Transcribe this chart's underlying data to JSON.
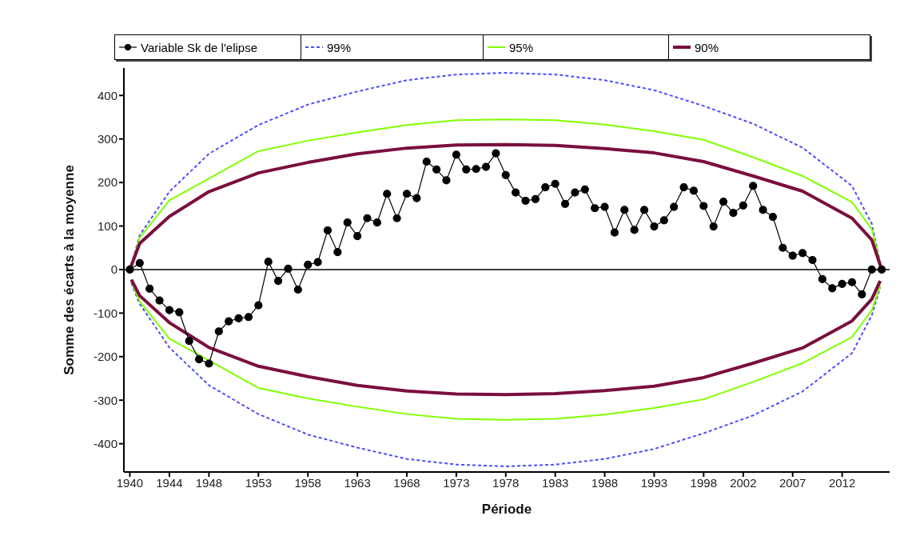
{
  "chart_data": {
    "type": "line",
    "xlabel": "Période",
    "ylabel": "Somme des écarts à la moyenne",
    "x": [
      1940,
      1941,
      1942,
      1943,
      1944,
      1945,
      1946,
      1947,
      1948,
      1949,
      1950,
      1951,
      1952,
      1953,
      1954,
      1955,
      1956,
      1957,
      1958,
      1959,
      1960,
      1961,
      1962,
      1963,
      1964,
      1965,
      1966,
      1967,
      1968,
      1969,
      1970,
      1971,
      1972,
      1973,
      1974,
      1975,
      1976,
      1977,
      1978,
      1979,
      1980,
      1981,
      1982,
      1983,
      1984,
      1985,
      1986,
      1987,
      1988,
      1989,
      1990,
      1991,
      1992,
      1993,
      1994,
      1995,
      1996,
      1997,
      1998,
      1999,
      2000,
      2001,
      2002,
      2003,
      2004,
      2005,
      2006,
      2007,
      2008,
      2009,
      2010,
      2011,
      2012,
      2013,
      2014,
      2015,
      2016
    ],
    "series": [
      {
        "name": "Variable Sk de l'elipse",
        "color": "#000000",
        "marker": "circle",
        "line_style": "solid",
        "values": [
          0,
          15,
          -44,
          -71,
          -93,
          -98,
          -164,
          -206,
          -216,
          -142,
          -119,
          -112,
          -109,
          -82,
          18,
          -26,
          2,
          -46,
          11,
          17,
          90,
          40,
          108,
          77,
          118,
          108,
          174,
          118,
          174,
          164,
          248,
          230,
          205,
          264,
          230,
          231,
          236,
          267,
          217,
          177,
          158,
          162,
          189,
          197,
          151,
          177,
          184,
          141,
          144,
          85,
          137,
          91,
          137,
          99,
          113,
          144,
          189,
          181,
          146,
          99,
          156,
          130,
          147,
          192,
          137,
          121,
          50,
          32,
          38,
          22,
          -22,
          -43,
          -33,
          -29,
          -57,
          0,
          0
        ]
      },
      {
        "name": "99%",
        "color": "#4d4dff",
        "marker": "none",
        "line_style": "dashed",
        "x": [
          1940,
          1941,
          1944,
          1948,
          1953,
          1958,
          1963,
          1968,
          1973,
          1978,
          1983,
          1988,
          1993,
          1998,
          2003,
          2008,
          2013,
          2015,
          2016
        ],
        "values": [
          0,
          79,
          179,
          266,
          332,
          379,
          409,
          435,
          448,
          452,
          448,
          435,
          412,
          376,
          335,
          280,
          192,
          105,
          0
        ]
      },
      {
        "color": "#4d4dff",
        "marker": "none",
        "line_style": "dashed",
        "x": [
          1940.15,
          1941,
          1944,
          1948,
          1953,
          1958,
          1963,
          1968,
          1973,
          1978,
          1983,
          1988,
          1993,
          1998,
          2003,
          2008,
          2013,
          2015,
          2015.85
        ],
        "values": [
          -31,
          -79,
          -179,
          -266,
          -332,
          -379,
          -409,
          -435,
          -448,
          -452,
          -448,
          -435,
          -412,
          -376,
          -335,
          -280,
          -192,
          -105,
          -41
        ]
      },
      {
        "name": "95%",
        "color": "#80ff00",
        "marker": "none",
        "line_style": "solid",
        "x": [
          1940,
          1941,
          1944,
          1948,
          1953,
          1958,
          1963,
          1968,
          1973,
          1978,
          1983,
          1988,
          1993,
          1998,
          2003,
          2008,
          2013,
          2015,
          2016
        ],
        "values": [
          0,
          73,
          159,
          209,
          272,
          296,
          315,
          332,
          343,
          345,
          343,
          333,
          318,
          298,
          258,
          215,
          155,
          93,
          0
        ]
      },
      {
        "color": "#80ff00",
        "marker": "none",
        "line_style": "solid",
        "x": [
          1940.15,
          1941,
          1944,
          1948,
          1953,
          1958,
          1963,
          1968,
          1973,
          1978,
          1983,
          1988,
          1993,
          1998,
          2003,
          2008,
          2013,
          2015,
          2015.85
        ],
        "values": [
          -28,
          -73,
          -159,
          -209,
          -272,
          -296,
          -315,
          -332,
          -343,
          -345,
          -343,
          -333,
          -318,
          -298,
          -258,
          -215,
          -155,
          -93,
          -36
        ]
      },
      {
        "name": "90%",
        "color": "#7a0f3f",
        "marker": "none",
        "line_style": "solid",
        "x": [
          1940,
          1941,
          1944,
          1948,
          1953,
          1958,
          1963,
          1968,
          1973,
          1978,
          1983,
          1988,
          1993,
          1998,
          2003,
          2008,
          2013,
          2015,
          2016
        ],
        "values": [
          0,
          60,
          122,
          179,
          222,
          246,
          266,
          279,
          286,
          287,
          285,
          278,
          268,
          248,
          215,
          180,
          118,
          68,
          0
        ]
      },
      {
        "color": "#7a0f3f",
        "marker": "none",
        "line_style": "solid",
        "x": [
          1940.15,
          1941,
          1944,
          1948,
          1953,
          1958,
          1963,
          1968,
          1973,
          1978,
          1983,
          1988,
          1993,
          1998,
          2003,
          2008,
          2013,
          2015,
          2015.85
        ],
        "values": [
          -23,
          -60,
          -122,
          -179,
          -222,
          -246,
          -266,
          -279,
          -286,
          -287,
          -285,
          -278,
          -268,
          -248,
          -215,
          -180,
          -118,
          -68,
          -26
        ]
      }
    ],
    "xlim": [
      1939.4,
      2016.8
    ],
    "xticks": [
      1940,
      1944,
      1948,
      1953,
      1958,
      1963,
      1968,
      1973,
      1978,
      1983,
      1988,
      1993,
      1998,
      2002,
      2007,
      2012
    ],
    "ylim": [
      -465,
      463
    ],
    "yticks": [
      -400,
      -300,
      -200,
      -100,
      0,
      100,
      200,
      300,
      400
    ],
    "ref_lines": [
      {
        "axis": "y",
        "value": 0,
        "color": "#000000"
      }
    ],
    "legend": "top",
    "grid": false
  }
}
